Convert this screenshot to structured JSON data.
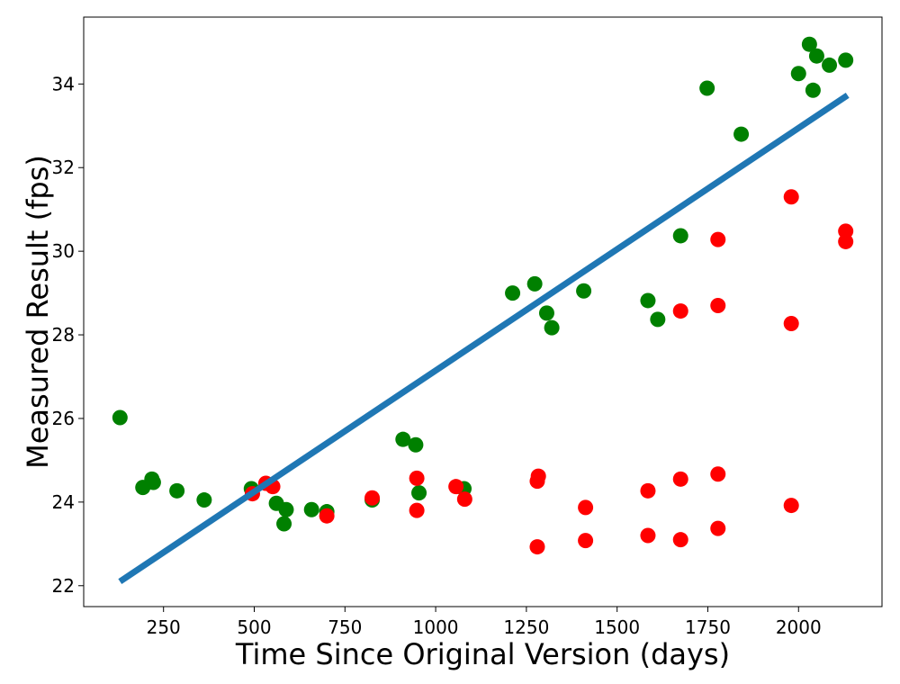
{
  "chart_data": {
    "type": "scatter",
    "title": "",
    "xlabel": "Time Since Original Version (days)",
    "ylabel": "Measured Result (fps)",
    "xlim": [
      30,
      2230
    ],
    "ylim": [
      21.5,
      35.6
    ],
    "xticks": [
      250,
      500,
      750,
      1000,
      1250,
      1500,
      1750,
      2000
    ],
    "yticks": [
      22,
      24,
      26,
      28,
      30,
      32,
      34
    ],
    "grid": false,
    "legend": "none",
    "colors": {
      "green": "#008000",
      "red": "#ff0000",
      "fit": "#1f77b4"
    },
    "series": [
      {
        "color": "green",
        "points": [
          [
            130,
            26.02
          ],
          [
            193,
            24.35
          ],
          [
            218,
            24.55
          ],
          [
            222,
            24.47
          ],
          [
            287,
            24.27
          ],
          [
            362,
            24.05
          ],
          [
            492,
            24.32
          ],
          [
            561,
            23.97
          ],
          [
            582,
            23.48
          ],
          [
            588,
            23.82
          ],
          [
            658,
            23.82
          ],
          [
            700,
            23.77
          ],
          [
            825,
            24.05
          ],
          [
            910,
            25.5
          ],
          [
            945,
            25.37
          ],
          [
            954,
            24.22
          ],
          [
            1078,
            24.32
          ],
          [
            1212,
            29.0
          ],
          [
            1273,
            29.22
          ],
          [
            1306,
            28.52
          ],
          [
            1320,
            28.17
          ],
          [
            1408,
            29.05
          ],
          [
            1585,
            28.82
          ],
          [
            1612,
            28.37
          ],
          [
            1675,
            30.37
          ],
          [
            1748,
            33.9
          ],
          [
            1842,
            32.8
          ],
          [
            2000,
            34.25
          ],
          [
            2030,
            34.95
          ],
          [
            2040,
            33.85
          ],
          [
            2050,
            34.67
          ],
          [
            2085,
            34.45
          ],
          [
            2130,
            34.57
          ]
        ]
      },
      {
        "color": "red",
        "points": [
          [
            495,
            24.2
          ],
          [
            532,
            24.45
          ],
          [
            551,
            24.37
          ],
          [
            700,
            23.67
          ],
          [
            825,
            24.1
          ],
          [
            948,
            24.57
          ],
          [
            948,
            23.8
          ],
          [
            1056,
            24.37
          ],
          [
            1080,
            24.07
          ],
          [
            1280,
            24.5
          ],
          [
            1283,
            24.62
          ],
          [
            1280,
            22.93
          ],
          [
            1413,
            23.87
          ],
          [
            1413,
            23.08
          ],
          [
            1585,
            24.27
          ],
          [
            1585,
            23.2
          ],
          [
            1675,
            24.55
          ],
          [
            1675,
            28.57
          ],
          [
            1675,
            23.1
          ],
          [
            1778,
            30.28
          ],
          [
            1778,
            28.7
          ],
          [
            1778,
            24.67
          ],
          [
            1778,
            23.37
          ],
          [
            1980,
            31.3
          ],
          [
            1980,
            28.27
          ],
          [
            1980,
            23.92
          ],
          [
            2130,
            30.48
          ],
          [
            2130,
            30.23
          ]
        ]
      }
    ],
    "fit_line": {
      "x": [
        130,
        2135
      ],
      "y": [
        22.1,
        33.73
      ]
    }
  }
}
